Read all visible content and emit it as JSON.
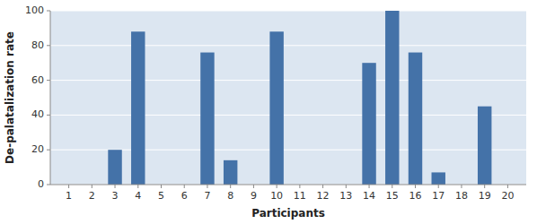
{
  "chart_data": {
    "type": "bar",
    "x": [
      1,
      2,
      3,
      4,
      5,
      6,
      7,
      8,
      9,
      10,
      11,
      12,
      13,
      14,
      15,
      16,
      17,
      18,
      19,
      20
    ],
    "values": [
      0,
      0,
      20,
      88,
      0,
      0,
      76,
      14,
      0,
      88,
      0,
      0,
      0,
      70,
      100,
      76,
      7,
      0,
      45,
      0
    ],
    "color": "#4472a8",
    "x_label": "Participants",
    "y_label": "De-palatalization rate",
    "xlim": [
      0.2,
      20.8
    ],
    "xticks": [
      1,
      2,
      3,
      4,
      5,
      6,
      7,
      8,
      9,
      10,
      11,
      12,
      13,
      14,
      15,
      16,
      17,
      18,
      19,
      20
    ],
    "ylim": [
      0,
      100
    ],
    "yticks": [
      0,
      20,
      40,
      60,
      80,
      100
    ],
    "grid": true
  }
}
